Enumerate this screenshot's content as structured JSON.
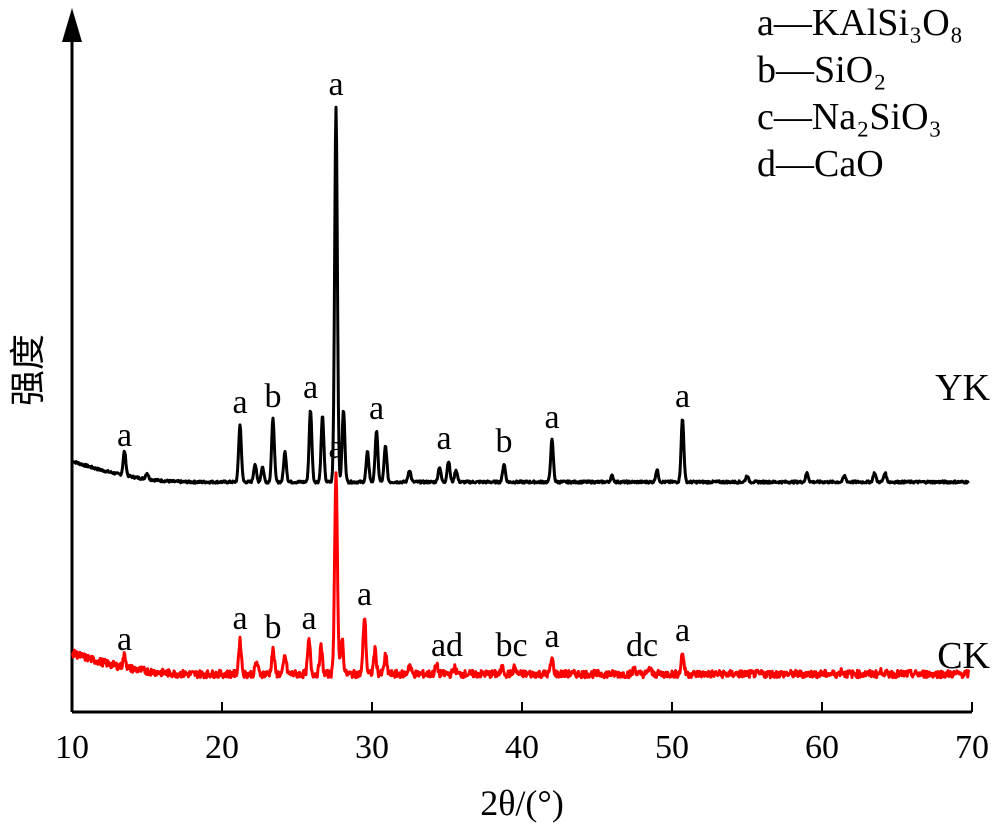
{
  "chart_data": {
    "type": "line",
    "xlabel": "2θ/(°)",
    "ylabel": "强度",
    "xlim": [
      10,
      70
    ],
    "xticks": [
      10,
      20,
      30,
      40,
      50,
      60,
      70
    ],
    "grid": false,
    "legend_position": "top-right",
    "legend": [
      {
        "key": "a",
        "formula": "KAlSi3O8",
        "text": "a—KAlSi₃O₈"
      },
      {
        "key": "b",
        "formula": "SiO2",
        "text": "b—SiO₂"
      },
      {
        "key": "c",
        "formula": "Na2SiO3",
        "text": "c—Na₂SiO₃"
      },
      {
        "key": "d",
        "formula": "CaO",
        "text": "d—CaO"
      }
    ],
    "series": [
      {
        "name": "YK",
        "color": "#000000",
        "baseline": 0.7,
        "peaks": [
          [
            13.5,
            0.08
          ],
          [
            15.0,
            0.02
          ],
          [
            21.2,
            0.19
          ],
          [
            22.2,
            0.06
          ],
          [
            22.7,
            0.05
          ],
          [
            23.4,
            0.21
          ],
          [
            24.2,
            0.1
          ],
          [
            25.9,
            0.24
          ],
          [
            26.7,
            0.22
          ],
          [
            27.6,
            1.25
          ],
          [
            28.1,
            0.24
          ],
          [
            29.7,
            0.1
          ],
          [
            30.3,
            0.17
          ],
          [
            30.9,
            0.12
          ],
          [
            32.5,
            0.04
          ],
          [
            34.5,
            0.05
          ],
          [
            35.1,
            0.07
          ],
          [
            35.6,
            0.04
          ],
          [
            38.8,
            0.06
          ],
          [
            42.0,
            0.14
          ],
          [
            46.0,
            0.02
          ],
          [
            49.0,
            0.04
          ],
          [
            50.7,
            0.21
          ],
          [
            55.0,
            0.02
          ],
          [
            59.0,
            0.03
          ],
          [
            61.5,
            0.02
          ],
          [
            63.5,
            0.03
          ],
          [
            64.2,
            0.03
          ]
        ],
        "labels": [
          {
            "x": 13.5,
            "text": "a"
          },
          {
            "x": 21.2,
            "text": "a"
          },
          {
            "x": 23.4,
            "text": "b"
          },
          {
            "x": 25.9,
            "text": "a"
          },
          {
            "x": 27.6,
            "text": "a"
          },
          {
            "x": 30.3,
            "text": "a"
          },
          {
            "x": 34.8,
            "text": "a"
          },
          {
            "x": 38.8,
            "text": "b"
          },
          {
            "x": 42.0,
            "text": "a"
          },
          {
            "x": 50.7,
            "text": "a"
          }
        ]
      },
      {
        "name": "CK",
        "color": "#ff0000",
        "baseline": 0.06,
        "peaks": [
          [
            13.5,
            0.04
          ],
          [
            21.2,
            0.11
          ],
          [
            22.3,
            0.04
          ],
          [
            23.4,
            0.08
          ],
          [
            24.2,
            0.06
          ],
          [
            25.8,
            0.11
          ],
          [
            26.6,
            0.09
          ],
          [
            27.6,
            0.68
          ],
          [
            28.0,
            0.12
          ],
          [
            29.5,
            0.19
          ],
          [
            30.2,
            0.08
          ],
          [
            30.9,
            0.06
          ],
          [
            32.5,
            0.03
          ],
          [
            34.3,
            0.03
          ],
          [
            35.5,
            0.02
          ],
          [
            38.7,
            0.02
          ],
          [
            39.5,
            0.02
          ],
          [
            42.0,
            0.05
          ],
          [
            47.5,
            0.02
          ],
          [
            48.5,
            0.02
          ],
          [
            50.7,
            0.07
          ],
          [
            61.3,
            0.01
          ],
          [
            64.0,
            0.01
          ]
        ],
        "labels": [
          {
            "x": 13.5,
            "text": "a"
          },
          {
            "x": 21.2,
            "text": "a"
          },
          {
            "x": 23.4,
            "text": "b"
          },
          {
            "x": 25.8,
            "text": "a"
          },
          {
            "x": 27.6,
            "text": "a"
          },
          {
            "x": 29.5,
            "text": "a"
          },
          {
            "x": 35.0,
            "text": "ad"
          },
          {
            "x": 39.3,
            "text": "bc"
          },
          {
            "x": 42.0,
            "text": "a"
          },
          {
            "x": 48.0,
            "text": "dc"
          },
          {
            "x": 50.7,
            "text": "a"
          }
        ]
      }
    ]
  }
}
